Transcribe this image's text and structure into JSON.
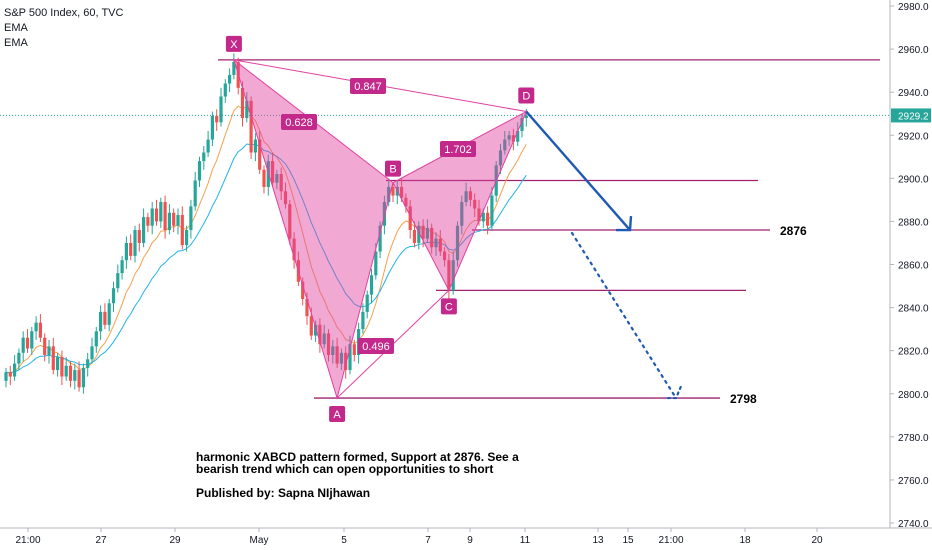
{
  "legend": {
    "symbol": "S&P 500 Index, 60, TVC",
    "ema1": "EMA",
    "ema2": "EMA"
  },
  "note": {
    "line1": "harmonic XABCD pattern formed, Support at 2876. See a",
    "line2": "bearish trend which can open opportunities to short",
    "published": "Published by: Sapna NIjhawan"
  },
  "chart_data": {
    "type": "candlestick",
    "symbol": "S&P 500 Index",
    "interval": "60",
    "ylim": [
      2740,
      2985
    ],
    "y_ticks": [
      2740,
      2760,
      2780,
      2800,
      2820,
      2840,
      2860,
      2880,
      2900,
      2920,
      2940,
      2960,
      2980
    ],
    "x_ticks": [
      "21:00",
      "27",
      "29",
      "May",
      "5",
      "7",
      "9",
      "11",
      "13",
      "15",
      "21:00",
      "18",
      "20"
    ],
    "last_price": "2929.2",
    "last_value": 2929.2,
    "colors": {
      "up": "#26a69a",
      "down": "#ef5350",
      "pattern": "#e040a0",
      "arrow": "#1e5ab4",
      "ema_fast": "#f6a04d",
      "ema_slow": "#21b5e8",
      "axis_text": "#131722"
    },
    "candles_close": [
      2810,
      2808,
      2814,
      2819,
      2826,
      2821,
      2829,
      2833,
      2826,
      2818,
      2822,
      2811,
      2817,
      2808,
      2813,
      2806,
      2811,
      2803,
      2812,
      2816,
      2822,
      2829,
      2838,
      2832,
      2842,
      2849,
      2856,
      2862,
      2870,
      2864,
      2876,
      2870,
      2882,
      2878,
      2886,
      2880,
      2889,
      2876,
      2884,
      2878,
      2883,
      2869,
      2876,
      2887,
      2899,
      2908,
      2912,
      2918,
      2929,
      2926,
      2938,
      2944,
      2948,
      2954,
      2942,
      2928,
      2936,
      2912,
      2918,
      2904,
      2896,
      2908,
      2898,
      2902,
      2894,
      2888,
      2872,
      2862,
      2852,
      2844,
      2836,
      2827,
      2832,
      2823,
      2828,
      2818,
      2822,
      2814,
      2819,
      2811,
      2823,
      2818,
      2830,
      2838,
      2846,
      2855,
      2866,
      2878,
      2889,
      2896,
      2892,
      2896,
      2891,
      2887,
      2876,
      2870,
      2878,
      2872,
      2877,
      2868,
      2872,
      2866,
      2862,
      2848,
      2862,
      2878,
      2889,
      2894,
      2890,
      2886,
      2880,
      2884,
      2878,
      2892,
      2906,
      2913,
      2918,
      2920,
      2917,
      2922,
      2928,
      2929.2
    ],
    "pattern": {
      "points": [
        {
          "label": "X",
          "index": 53,
          "value": 2955
        },
        {
          "label": "A",
          "index": 77,
          "value": 2798
        },
        {
          "label": "B",
          "index": 90,
          "value": 2898
        },
        {
          "label": "C",
          "index": 103,
          "value": 2848
        },
        {
          "label": "D",
          "index": 121,
          "value": 2931
        }
      ],
      "ratios": [
        {
          "text": "0.628",
          "between": "XA-AB"
        },
        {
          "text": "0.847",
          "between": "XD"
        },
        {
          "text": "1.702",
          "between": "BC-CD"
        },
        {
          "text": "0.496",
          "between": "AC"
        }
      ]
    },
    "levels": [
      {
        "value": 2955
      },
      {
        "value": 2899
      },
      {
        "value": 2876,
        "label": "2876"
      },
      {
        "value": 2848
      },
      {
        "value": 2798,
        "label": "2798"
      }
    ],
    "projection": {
      "start": {
        "index": 121,
        "value": 2931
      },
      "target1": 2876,
      "target2": 2798
    }
  }
}
